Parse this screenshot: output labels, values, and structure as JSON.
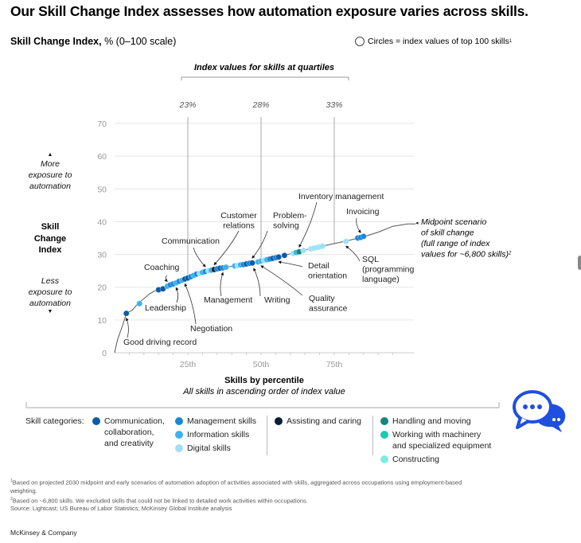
{
  "title": "Our Skill Change Index assesses how automation exposure varies across skills.",
  "subtitle": {
    "bold": "Skill Change Index,",
    "rest": " % (0–100 scale)"
  },
  "circles_note": {
    "text": "Circles = index values of top 100 skills",
    "sup": "1"
  },
  "y_side": {
    "more": [
      "More",
      "exposure to",
      "automation"
    ],
    "title": [
      "Skill",
      "Change",
      "Index"
    ],
    "less": [
      "Less",
      "exposure to",
      "automation"
    ]
  },
  "chart_data": {
    "type": "scatter",
    "title": "Skill Change Index, % (0–100 scale)",
    "xlabel": "Skills by percentile",
    "xsublabel": "All skills in ascending order of index value",
    "ylabel": "Skill Change Index",
    "ylim": [
      0,
      70
    ],
    "xlim": [
      0,
      100
    ],
    "yticks": [
      0,
      10,
      20,
      30,
      40,
      50,
      60,
      70
    ],
    "xticks": [
      {
        "value": 25,
        "label": "25th"
      },
      {
        "value": 50,
        "label": "50th"
      },
      {
        "value": 75,
        "label": "75th"
      }
    ],
    "grid": true,
    "quartile_header": "Index values for skills at quartiles",
    "quartiles": [
      {
        "percentile": 25,
        "label": "23%"
      },
      {
        "percentile": 50,
        "label": "28%"
      },
      {
        "percentile": 75,
        "label": "33%"
      }
    ],
    "curve": {
      "name": "Midpoint scenario of skill change (full range of index values for ~6,800 skills)",
      "annotation": [
        "Midpoint scenario",
        "of skill change",
        "(full range of index",
        "values for ~6,800 skills)"
      ],
      "annotation_sup": "2",
      "points": [
        [
          0,
          0
        ],
        [
          1,
          4
        ],
        [
          3,
          9
        ],
        [
          4,
          12
        ],
        [
          6,
          13
        ],
        [
          8,
          15
        ],
        [
          12,
          18
        ],
        [
          15,
          19.5
        ],
        [
          20,
          21
        ],
        [
          25,
          22.8
        ],
        [
          30,
          24.5
        ],
        [
          35,
          25.6
        ],
        [
          40,
          26.4
        ],
        [
          45,
          27.1
        ],
        [
          50,
          28
        ],
        [
          55,
          29
        ],
        [
          60,
          30.2
        ],
        [
          65,
          31.4
        ],
        [
          70,
          32.4
        ],
        [
          75,
          33.3
        ],
        [
          80,
          34.3
        ],
        [
          85,
          35.4
        ],
        [
          90,
          36.8
        ],
        [
          95,
          38.6
        ],
        [
          100,
          39.3
        ]
      ]
    },
    "categories": [
      {
        "key": "comm",
        "name": "Communication, collaboration, and creativity",
        "color": "#0b5ba8"
      },
      {
        "key": "mgmt",
        "name": "Management skills",
        "color": "#1a88d8"
      },
      {
        "key": "info",
        "name": "Information skills",
        "color": "#3cb2ee"
      },
      {
        "key": "digital",
        "name": "Digital skills",
        "color": "#9ee0f8"
      },
      {
        "key": "assist",
        "name": "Assisting and caring",
        "color": "#0a1f33"
      },
      {
        "key": "handling",
        "name": "Handling and moving",
        "color": "#14867a"
      },
      {
        "key": "machinery",
        "name": "Working with machinery and specialized equipment",
        "color": "#1cc9b6"
      },
      {
        "key": "construct",
        "name": "Constructing",
        "color": "#7fece0"
      }
    ],
    "points": [
      {
        "x": 4,
        "y": 12,
        "c": "comm"
      },
      {
        "x": 8.5,
        "y": 15,
        "c": "info"
      },
      {
        "x": 15,
        "y": 19.2,
        "c": "comm"
      },
      {
        "x": 16.5,
        "y": 19.5,
        "c": "comm"
      },
      {
        "x": 18,
        "y": 20.3,
        "c": "info"
      },
      {
        "x": 19,
        "y": 20.7,
        "c": "mgmt"
      },
      {
        "x": 20,
        "y": 21,
        "c": "mgmt"
      },
      {
        "x": 21,
        "y": 21.3,
        "c": "info"
      },
      {
        "x": 22,
        "y": 21.8,
        "c": "mgmt"
      },
      {
        "x": 23,
        "y": 22.1,
        "c": "info"
      },
      {
        "x": 24,
        "y": 22.5,
        "c": "comm"
      },
      {
        "x": 25,
        "y": 22.8,
        "c": "comm"
      },
      {
        "x": 26,
        "y": 23.2,
        "c": "mgmt"
      },
      {
        "x": 27,
        "y": 23.6,
        "c": "info"
      },
      {
        "x": 28,
        "y": 24,
        "c": "mgmt"
      },
      {
        "x": 29,
        "y": 24.2,
        "c": "digital"
      },
      {
        "x": 30,
        "y": 24.5,
        "c": "info"
      },
      {
        "x": 31,
        "y": 24.8,
        "c": "mgmt"
      },
      {
        "x": 32,
        "y": 25,
        "c": "digital"
      },
      {
        "x": 33,
        "y": 25.2,
        "c": "info"
      },
      {
        "x": 34,
        "y": 25.4,
        "c": "assist"
      },
      {
        "x": 35,
        "y": 25.6,
        "c": "mgmt"
      },
      {
        "x": 36,
        "y": 25.8,
        "c": "comm"
      },
      {
        "x": 37,
        "y": 25.9,
        "c": "mgmt"
      },
      {
        "x": 38,
        "y": 26.1,
        "c": "info"
      },
      {
        "x": 41,
        "y": 26.5,
        "c": "info"
      },
      {
        "x": 42,
        "y": 26.6,
        "c": "digital"
      },
      {
        "x": 43,
        "y": 26.8,
        "c": "info"
      },
      {
        "x": 44,
        "y": 26.9,
        "c": "mgmt"
      },
      {
        "x": 45,
        "y": 27.1,
        "c": "comm"
      },
      {
        "x": 46,
        "y": 27.3,
        "c": "mgmt"
      },
      {
        "x": 47,
        "y": 27.4,
        "c": "comm"
      },
      {
        "x": 49,
        "y": 27.7,
        "c": "info"
      },
      {
        "x": 50,
        "y": 28,
        "c": "info"
      },
      {
        "x": 51,
        "y": 28.2,
        "c": "digital"
      },
      {
        "x": 52,
        "y": 28.4,
        "c": "info"
      },
      {
        "x": 53,
        "y": 28.6,
        "c": "mgmt"
      },
      {
        "x": 54,
        "y": 28.8,
        "c": "comm"
      },
      {
        "x": 55,
        "y": 29,
        "c": "mgmt"
      },
      {
        "x": 56,
        "y": 29.2,
        "c": "comm"
      },
      {
        "x": 58,
        "y": 29.7,
        "c": "comm"
      },
      {
        "x": 61,
        "y": 30.3,
        "c": "digital"
      },
      {
        "x": 62,
        "y": 30.6,
        "c": "info"
      },
      {
        "x": 63,
        "y": 30.8,
        "c": "handling"
      },
      {
        "x": 64.5,
        "y": 31.2,
        "c": "digital"
      },
      {
        "x": 67,
        "y": 31.7,
        "c": "digital"
      },
      {
        "x": 68,
        "y": 31.9,
        "c": "digital"
      },
      {
        "x": 69,
        "y": 32.1,
        "c": "digital"
      },
      {
        "x": 70,
        "y": 32.3,
        "c": "digital"
      },
      {
        "x": 71,
        "y": 32.5,
        "c": "digital"
      },
      {
        "x": 79,
        "y": 34,
        "c": "digital"
      },
      {
        "x": 83,
        "y": 35,
        "c": "mgmt"
      },
      {
        "x": 84,
        "y": 35.2,
        "c": "mgmt"
      },
      {
        "x": 85,
        "y": 35.5,
        "c": "mgmt"
      }
    ],
    "annotations": [
      {
        "label": [
          "Good driving record"
        ],
        "point": [
          4,
          12
        ]
      },
      {
        "label": [
          "Leadership"
        ],
        "point": [
          21,
          21.3
        ]
      },
      {
        "label": [
          "Coaching"
        ],
        "point": [
          18,
          20.3
        ]
      },
      {
        "label": [
          "Negotiation"
        ],
        "point": [
          24,
          22.5
        ]
      },
      {
        "label": [
          "Communication"
        ],
        "point": [
          31,
          24.8
        ]
      },
      {
        "label": [
          "Customer",
          "relations"
        ],
        "point": [
          34,
          25.4
        ]
      },
      {
        "label": [
          "Management"
        ],
        "point": [
          37,
          25.9
        ]
      },
      {
        "label": [
          "Problem-",
          "solving"
        ],
        "point": [
          47,
          27.4
        ]
      },
      {
        "label": [
          "Writing"
        ],
        "point": [
          47.5,
          27.2
        ]
      },
      {
        "label": [
          "Quality",
          "assurance"
        ],
        "point": [
          50,
          28
        ]
      },
      {
        "label": [
          "Detail",
          "orientation"
        ],
        "point": [
          56,
          29.2
        ]
      },
      {
        "label": [
          "Inventory management"
        ],
        "point": [
          63,
          30.8
        ]
      },
      {
        "label": [
          "Invoicing"
        ],
        "point": [
          84,
          35.2
        ]
      },
      {
        "label": [
          "SQL",
          "(programming",
          "language)"
        ],
        "point": [
          79,
          34
        ]
      }
    ]
  },
  "legend": {
    "prefix": "Skill categories:",
    "items": [
      "Communication, collaboration, and creativity",
      "Management skills",
      "Information skills",
      "Digital skills",
      "Assisting and caring",
      "Handling and moving",
      "Working with machinery and specialized equipment",
      "Constructing"
    ],
    "lines": {
      "comm": [
        "Communication,",
        "collaboration,",
        "and creativity"
      ],
      "machinery": [
        "Working with machinery",
        "and specialized equipment"
      ]
    }
  },
  "footnotes": [
    {
      "sup": "1",
      "text": "Based on projected 2030 midpoint and early scenarios of automation adoption of activities associated with skills, aggregated across occupations using employment-based weighting."
    },
    {
      "sup": "2",
      "text": "Based on ~6,800 skills. We excluded skills that could not be linked to detailed work activities within occupations."
    },
    {
      "sup": "",
      "text": "Source: Lightcast; US Bureau of Labor Statistics; McKinsey Global Institute analysis"
    }
  ],
  "brand": "McKinsey & Company",
  "chat_button": {
    "icon": "chat-bubbles-icon",
    "color": "#1f4fe0"
  }
}
